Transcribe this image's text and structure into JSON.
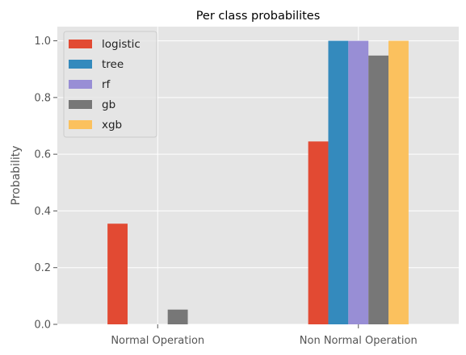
{
  "chart_data": {
    "type": "bar",
    "title": "Per class probabilites",
    "xlabel": "",
    "ylabel": "Probability",
    "ylim": [
      0,
      1.05
    ],
    "yticks": [
      0.0,
      0.2,
      0.4,
      0.6,
      0.8,
      1.0
    ],
    "ytick_labels": [
      "0.0",
      "0.2",
      "0.4",
      "0.6",
      "0.8",
      "1.0"
    ],
    "categories": [
      "Normal Operation",
      "Non Normal Operation"
    ],
    "series": [
      {
        "name": "logistic",
        "color": "#E24A33",
        "values": [
          0.355,
          0.645
        ]
      },
      {
        "name": "tree",
        "color": "#348ABD",
        "values": [
          0.0,
          1.0
        ]
      },
      {
        "name": "rf",
        "color": "#988ED5",
        "values": [
          0.0,
          1.0
        ]
      },
      {
        "name": "gb",
        "color": "#777777",
        "values": [
          0.052,
          0.948
        ]
      },
      {
        "name": "xgb",
        "color": "#FBC15E",
        "values": [
          0.0,
          1.0
        ]
      }
    ],
    "grid": true,
    "legend_position": "top-left",
    "background_color": "#E5E5E5"
  }
}
